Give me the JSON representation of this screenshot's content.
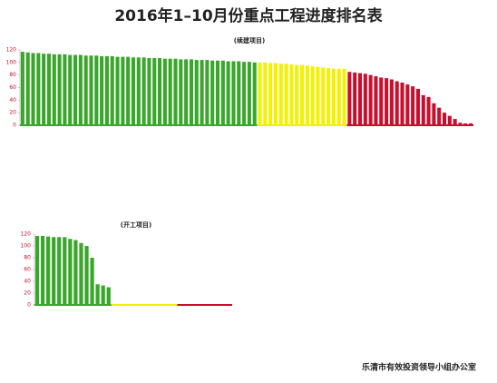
{
  "title": "2016年1–10月份重点工程进度排名表",
  "footer": "乐清市有效投资领导小组办公室",
  "chart_data": [
    {
      "type": "bar",
      "subtitle": "(续建项目)",
      "ylim": [
        0,
        120
      ],
      "yticks": [
        0,
        20,
        40,
        60,
        80,
        100,
        120
      ],
      "series": [
        {
          "color": "#3aa62b",
          "values": [
            117,
            116,
            115,
            115,
            114,
            114,
            113,
            113,
            113,
            112,
            112,
            112,
            111,
            111,
            111,
            110,
            110,
            110,
            109,
            109,
            109,
            108,
            108,
            108,
            107,
            107,
            107,
            106,
            106,
            106,
            105,
            105,
            105,
            104,
            104,
            104,
            103,
            103,
            103,
            102,
            102,
            102,
            101,
            101,
            100
          ]
        },
        {
          "color": "#f2f200",
          "values": [
            100,
            100,
            99,
            99,
            98,
            98,
            97,
            96,
            96,
            95,
            94,
            93,
            92,
            91,
            90,
            90,
            90
          ]
        },
        {
          "color": "#c8102e",
          "values": [
            85,
            84,
            83,
            82,
            80,
            78,
            76,
            75,
            73,
            70,
            68,
            65,
            62,
            58,
            48,
            45,
            35,
            28,
            20,
            15,
            10,
            4,
            3,
            3
          ]
        }
      ]
    },
    {
      "type": "bar",
      "subtitle": "(开工项目)",
      "ylim": [
        0,
        120
      ],
      "yticks": [
        0,
        20,
        40,
        60,
        80,
        100,
        120
      ],
      "series": [
        {
          "color": "#3aa62b",
          "values": [
            117,
            117,
            116,
            115,
            115,
            115,
            112,
            110,
            105,
            100,
            80,
            35,
            33,
            30
          ]
        },
        {
          "color": "#f2f200",
          "values": [
            0,
            0,
            0,
            0,
            0,
            0,
            0,
            0,
            0,
            0,
            0,
            0
          ]
        },
        {
          "color": "#c8102e",
          "values": [
            0,
            0,
            0,
            0,
            0,
            0,
            0,
            0,
            0,
            0
          ]
        }
      ]
    }
  ]
}
